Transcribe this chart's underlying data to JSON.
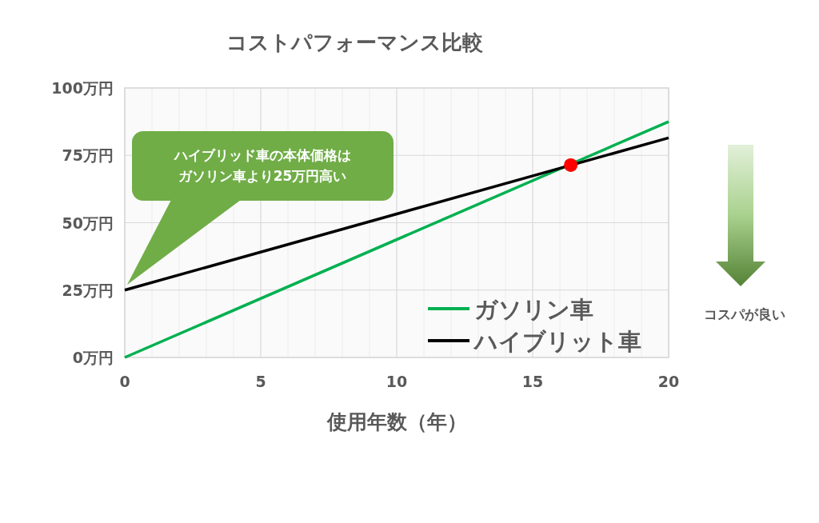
{
  "chart_data": {
    "type": "line",
    "title": "コストパフォーマンス比較",
    "xlabel": "使用年数（年）",
    "xlim": [
      0,
      20
    ],
    "ylim": [
      0,
      100
    ],
    "xticks": [
      0,
      {
        "value": 1,
        "label": null
      },
      {
        "value": 2,
        "label": null
      },
      {
        "value": 3,
        "label": null
      },
      {
        "value": 4,
        "label": null
      },
      5,
      {
        "value": 6,
        "label": null
      },
      {
        "value": 7,
        "label": null
      },
      {
        "value": 8,
        "label": null
      },
      {
        "value": 9,
        "label": null
      },
      10,
      {
        "value": 11,
        "label": null
      },
      {
        "value": 12,
        "label": null
      },
      {
        "value": 13,
        "label": null
      },
      {
        "value": 14,
        "label": null
      },
      15,
      {
        "value": 16,
        "label": null
      },
      {
        "value": 17,
        "label": null
      },
      {
        "value": 18,
        "label": null
      },
      {
        "value": 19,
        "label": null
      },
      20
    ],
    "yticks": [
      {
        "value": 0,
        "label": "0万円"
      },
      {
        "value": 25,
        "label": "25万円"
      },
      {
        "value": 50,
        "label": "50万円"
      },
      {
        "value": 75,
        "label": "75万円"
      },
      {
        "value": 100,
        "label": "100万円"
      }
    ],
    "grid": true,
    "legend": "bottom right",
    "marker": "none",
    "line_style": "solid",
    "series": [
      {
        "name": "ガソリン車",
        "color": "#00b050",
        "x": [
          0,
          20
        ],
        "values": [
          0,
          87.5
        ]
      },
      {
        "name": "ハイブリット車",
        "color": "#000000",
        "x": [
          0,
          20
        ],
        "values": [
          25,
          81.5
        ]
      },
      {
        "type": "scatter",
        "color": "#ff0000",
        "marker": "circle",
        "x": [
          16.4
        ],
        "values": [
          71.4
        ]
      }
    ],
    "annotations": [
      "ハイブリッド車の本体価格はガソリン車より25万円高い",
      "コスパが良い"
    ]
  }
}
